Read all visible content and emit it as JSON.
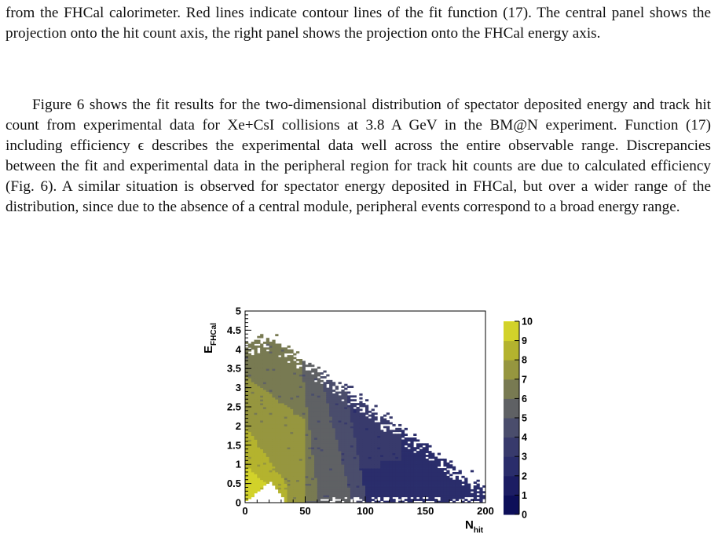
{
  "text": {
    "paragraph1": "from the FHCal calorimeter. Red lines indicate contour lines of the fit function (17). The central panel shows the projection onto the hit count axis, the right panel shows the projection onto the FHCal energy axis.",
    "paragraph2": "Figure 6 shows the fit results for the two-dimensional distribution of spectator deposited energy and track hit count from experimental data for Xe+CsI collisions at 3.8 A GeV in the BM@N experiment. Function (17) including efficiency ϵ describes the experimental data well across the entire observable range. Discrepancies between the fit and experimental data in the peripheral region for track hit counts are due to calculated efficiency (Fig. 6). A similar situation is observed for spectator energy deposited in FHCal, but over a wider range of the distribution, since due to the absence of a central module, peripheral events correspond to a broad energy range."
  },
  "chart_data": {
    "type": "heatmap",
    "xlabel": "N",
    "xlabel_sub": "hit",
    "ylabel": "E",
    "ylabel_sub": "FHCal",
    "xlim": [
      0,
      200
    ],
    "ylim": [
      0,
      5
    ],
    "x_ticks": [
      "0",
      "50",
      "100",
      "150",
      "200"
    ],
    "y_ticks": [
      "0",
      "0.5",
      "1",
      "1.5",
      "2",
      "2.5",
      "3",
      "3.5",
      "4",
      "4.5",
      "5"
    ],
    "colorbar": {
      "range": [
        0,
        10
      ],
      "ticks": [
        "0",
        "1",
        "2",
        "3",
        "4",
        "5",
        "6",
        "7",
        "8",
        "9",
        "10"
      ],
      "colors": [
        "#0d0f59",
        "#1c1d63",
        "#2a2d6b",
        "#383a6c",
        "#4a4d6c",
        "#5f6164",
        "#787a52",
        "#96963f",
        "#b4b32e",
        "#d2d22a",
        "#ecec3c"
      ]
    },
    "bands": [
      {
        "level": 7,
        "y_lo": 0.0,
        "y_hi": 4.4,
        "upper_edge_x": [
          [
            0.0,
            4.1
          ],
          [
            12,
            4.2
          ],
          [
            22,
            4.2
          ],
          [
            32,
            3.7
          ],
          [
            38,
            3.35
          ],
          [
            45,
            3.15
          ]
        ],
        "lower_edge": "band_8"
      },
      {
        "level": 8,
        "upper_edge_x": [
          [
            0.0,
            1.9
          ],
          [
            6,
            1.6
          ],
          [
            12,
            1.3
          ],
          [
            18,
            1.05
          ],
          [
            24,
            0.8
          ],
          [
            30,
            0.55
          ],
          [
            33,
            0.4
          ]
        ]
      },
      {
        "level": 9,
        "upper_edge_x": [
          [
            0.0,
            0.9
          ],
          [
            6,
            0.75
          ],
          [
            12,
            0.58
          ],
          [
            17,
            0.42
          ],
          [
            20,
            0.3
          ]
        ]
      },
      {
        "level": 6,
        "upper_edge_x": [
          [
            30,
            3.2
          ],
          [
            42,
            3.0
          ],
          [
            50,
            2.75
          ],
          [
            60,
            2.6
          ],
          [
            70,
            2.35
          ]
        ]
      },
      {
        "level": 5,
        "upper_edge_x": [
          [
            55,
            2.85
          ],
          [
            72,
            2.6
          ],
          [
            85,
            2.3
          ],
          [
            95,
            2.1
          ]
        ]
      },
      {
        "level": 4,
        "upper_edge_x": [
          [
            75,
            2.3
          ],
          [
            90,
            2.2
          ],
          [
            110,
            1.95
          ],
          [
            125,
            1.75
          ],
          [
            140,
            1.55
          ]
        ]
      },
      {
        "level": 3,
        "upper_edge_x": [
          [
            100,
            1.9
          ],
          [
            125,
            1.7
          ],
          [
            150,
            1.35
          ],
          [
            170,
            1.05
          ],
          [
            185,
            0.75
          ],
          [
            195,
            0.5
          ],
          [
            200,
            0.3
          ]
        ]
      }
    ]
  }
}
